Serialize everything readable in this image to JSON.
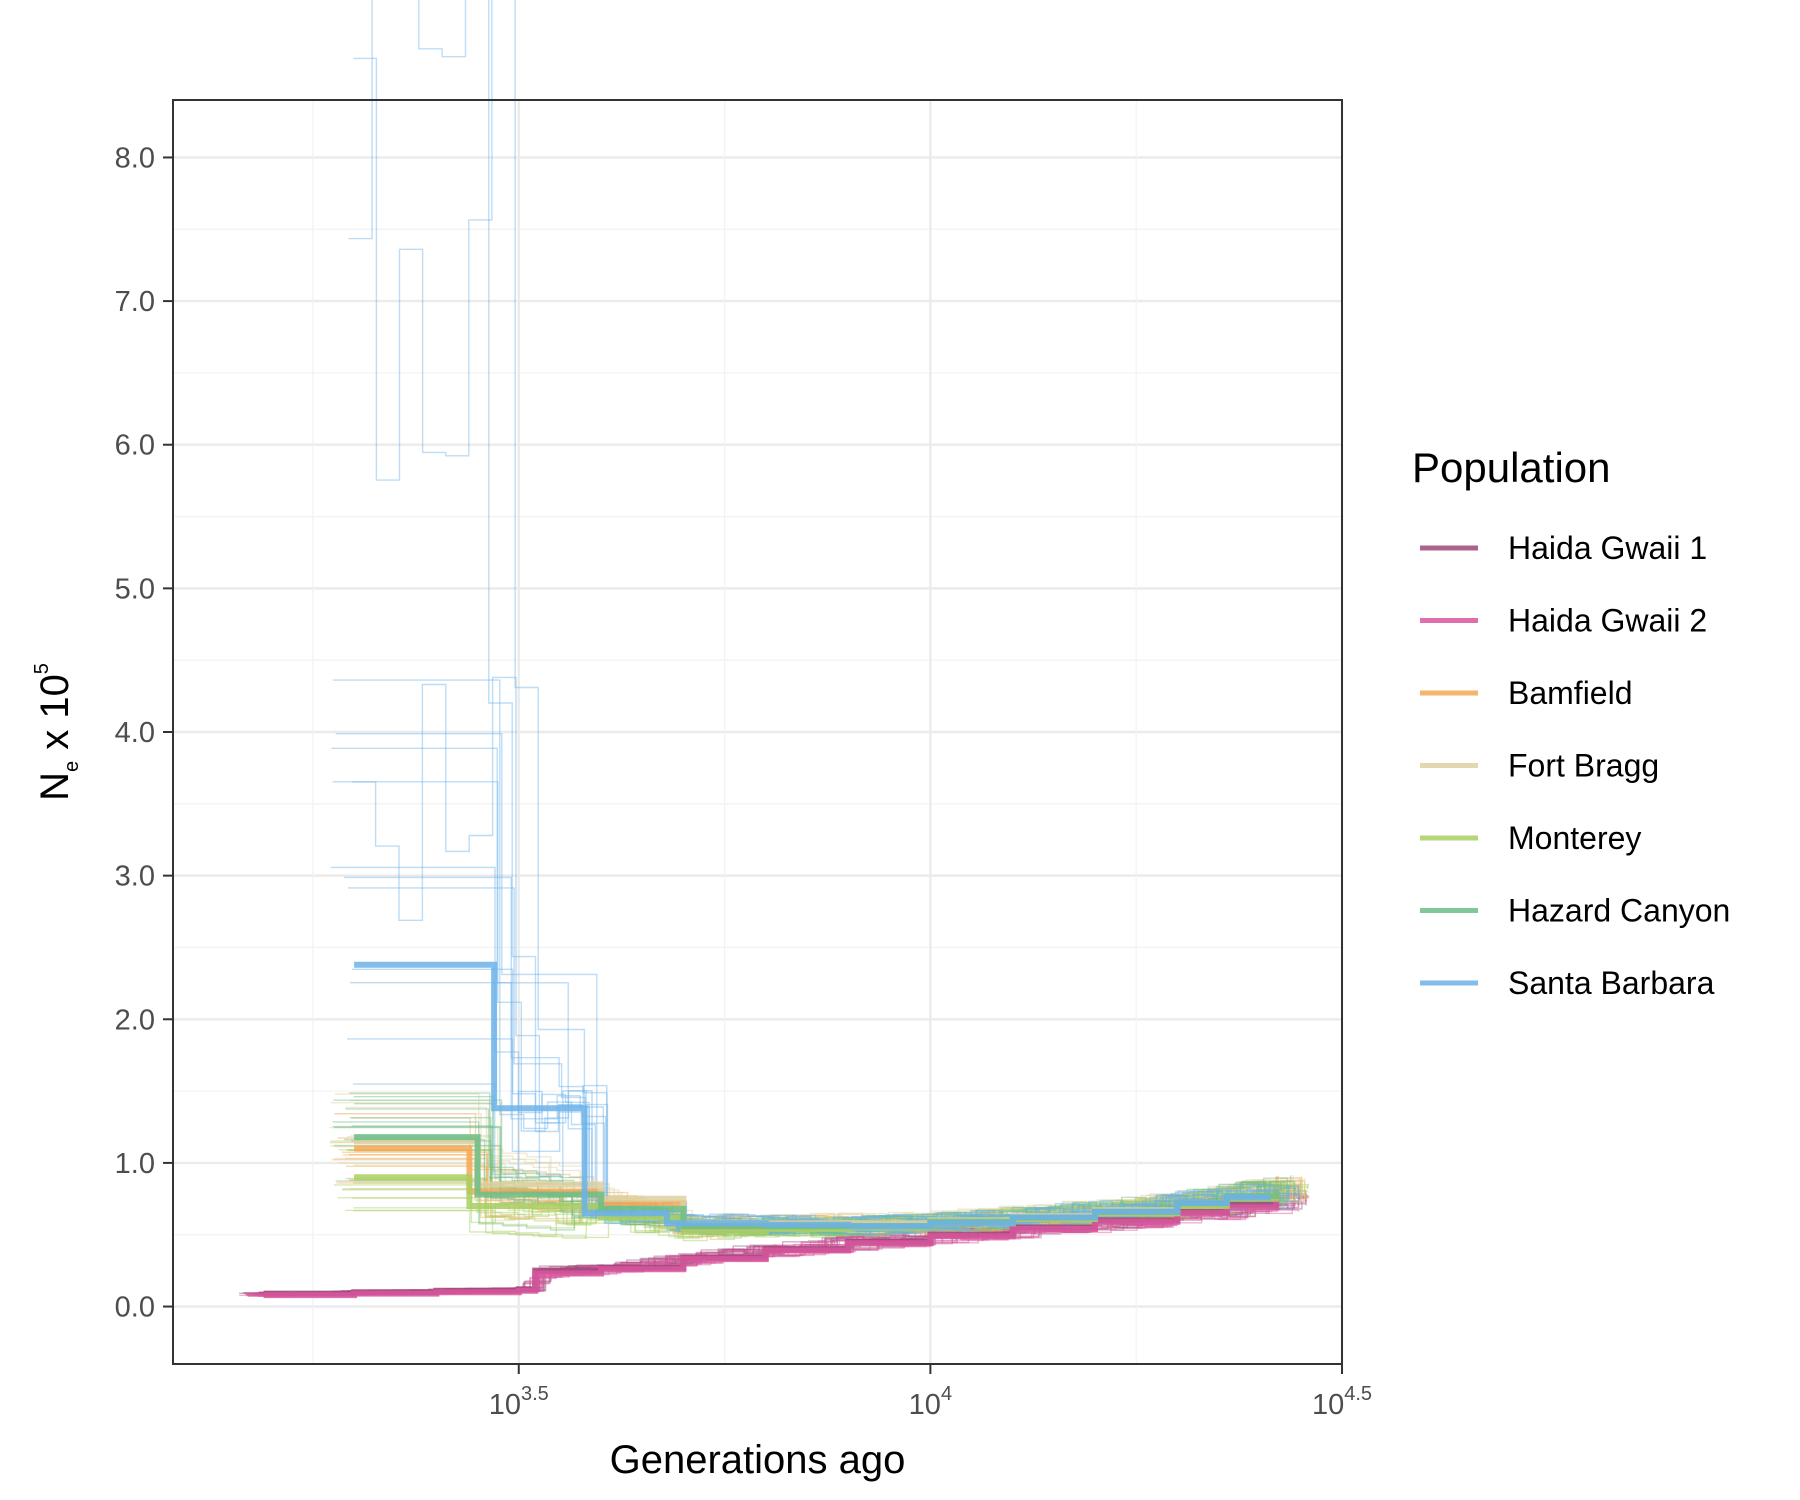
{
  "chart_data": {
    "type": "line",
    "xlabel": "Generations ago",
    "ylabel": {
      "base": "N",
      "sub": "e",
      "mid": " x 10",
      "sup": "5"
    },
    "x_scale": "log10",
    "xlim_log10": [
      3.08,
      4.5
    ],
    "ylim": [
      -0.4,
      8.4
    ],
    "grid": true,
    "x_ticks": [
      {
        "log10": 3.5,
        "base": "10",
        "exp": "3.5"
      },
      {
        "log10": 4.0,
        "base": "10",
        "exp": "4"
      },
      {
        "log10": 4.5,
        "base": "10",
        "exp": "4.5"
      }
    ],
    "x_minor_log10": [
      3.25,
      3.75,
      4.25
    ],
    "y_ticks": [
      {
        "value": 0,
        "label": "0.0"
      },
      {
        "value": 1,
        "label": "1.0"
      },
      {
        "value": 2,
        "label": "2.0"
      },
      {
        "value": 3,
        "label": "3.0"
      },
      {
        "value": 4,
        "label": "4.0"
      },
      {
        "value": 5,
        "label": "5.0"
      },
      {
        "value": 6,
        "label": "6.0"
      },
      {
        "value": 7,
        "label": "7.0"
      },
      {
        "value": 8,
        "label": "8.0"
      }
    ],
    "legend": {
      "title": "Population",
      "position": "right"
    },
    "series": [
      {
        "name": "Haida Gwaii 1",
        "color": "#a0487a",
        "values": [
          [
            3.19,
            0.09
          ],
          [
            3.3,
            0.1
          ],
          [
            3.4,
            0.11
          ],
          [
            3.5,
            0.12
          ],
          [
            3.52,
            0.25
          ],
          [
            3.6,
            0.27
          ],
          [
            3.7,
            0.34
          ],
          [
            3.8,
            0.4
          ],
          [
            3.9,
            0.45
          ],
          [
            4.0,
            0.5
          ],
          [
            4.1,
            0.55
          ],
          [
            4.2,
            0.6
          ],
          [
            4.3,
            0.66
          ],
          [
            4.36,
            0.71
          ],
          [
            4.42,
            0.76
          ]
        ]
      },
      {
        "name": "Haida Gwaii 2",
        "color": "#d8569e",
        "values": [
          [
            3.19,
            0.08
          ],
          [
            3.3,
            0.09
          ],
          [
            3.4,
            0.1
          ],
          [
            3.5,
            0.11
          ],
          [
            3.52,
            0.23
          ],
          [
            3.6,
            0.26
          ],
          [
            3.7,
            0.33
          ],
          [
            3.8,
            0.39
          ],
          [
            3.9,
            0.44
          ],
          [
            4.0,
            0.49
          ],
          [
            4.1,
            0.54
          ],
          [
            4.2,
            0.59
          ],
          [
            4.3,
            0.65
          ],
          [
            4.36,
            0.69
          ],
          [
            4.42,
            0.74
          ]
        ]
      },
      {
        "name": "Bamfield",
        "color": "#f5a855",
        "values": [
          [
            3.3,
            1.1
          ],
          [
            3.44,
            1.1
          ],
          [
            3.44,
            0.8
          ],
          [
            3.6,
            0.72
          ],
          [
            3.7,
            0.55
          ],
          [
            3.8,
            0.57
          ],
          [
            3.9,
            0.56
          ],
          [
            4.0,
            0.58
          ],
          [
            4.1,
            0.61
          ],
          [
            4.2,
            0.65
          ],
          [
            4.3,
            0.71
          ],
          [
            4.36,
            0.76
          ],
          [
            4.42,
            0.82
          ]
        ]
      },
      {
        "name": "Fort Bragg",
        "color": "#ddd0a0",
        "values": [
          [
            3.3,
            1.15
          ],
          [
            3.45,
            1.15
          ],
          [
            3.45,
            0.85
          ],
          [
            3.6,
            0.75
          ],
          [
            3.7,
            0.58
          ],
          [
            3.8,
            0.58
          ],
          [
            3.9,
            0.58
          ],
          [
            4.0,
            0.6
          ],
          [
            4.1,
            0.63
          ],
          [
            4.2,
            0.67
          ],
          [
            4.3,
            0.72
          ],
          [
            4.36,
            0.77
          ],
          [
            4.42,
            0.82
          ]
        ]
      },
      {
        "name": "Monterey",
        "color": "#a8cf62",
        "values": [
          [
            3.3,
            0.9
          ],
          [
            3.44,
            0.9
          ],
          [
            3.44,
            0.7
          ],
          [
            3.6,
            0.62
          ],
          [
            3.7,
            0.52
          ],
          [
            3.8,
            0.54
          ],
          [
            3.9,
            0.55
          ],
          [
            4.0,
            0.58
          ],
          [
            4.1,
            0.61
          ],
          [
            4.2,
            0.65
          ],
          [
            4.3,
            0.7
          ],
          [
            4.36,
            0.75
          ],
          [
            4.42,
            0.8
          ]
        ]
      },
      {
        "name": "Hazard Canyon",
        "color": "#6bbd87",
        "values": [
          [
            3.3,
            1.18
          ],
          [
            3.45,
            1.18
          ],
          [
            3.45,
            0.78
          ],
          [
            3.6,
            0.68
          ],
          [
            3.7,
            0.56
          ],
          [
            3.8,
            0.56
          ],
          [
            3.9,
            0.56
          ],
          [
            4.0,
            0.59
          ],
          [
            4.1,
            0.62
          ],
          [
            4.2,
            0.66
          ],
          [
            4.3,
            0.72
          ],
          [
            4.36,
            0.77
          ],
          [
            4.42,
            0.82
          ]
        ]
      },
      {
        "name": "Santa Barbara",
        "color": "#6cb1e8",
        "values": [
          [
            3.3,
            2.38
          ],
          [
            3.47,
            2.38
          ],
          [
            3.47,
            1.38
          ],
          [
            3.58,
            1.38
          ],
          [
            3.58,
            0.65
          ],
          [
            3.68,
            0.65
          ],
          [
            3.68,
            0.58
          ],
          [
            3.8,
            0.57
          ],
          [
            3.9,
            0.56
          ],
          [
            4.0,
            0.58
          ],
          [
            4.1,
            0.62
          ],
          [
            4.2,
            0.66
          ],
          [
            4.3,
            0.72
          ],
          [
            4.36,
            0.76
          ],
          [
            4.41,
            0.77
          ]
        ]
      }
    ]
  }
}
